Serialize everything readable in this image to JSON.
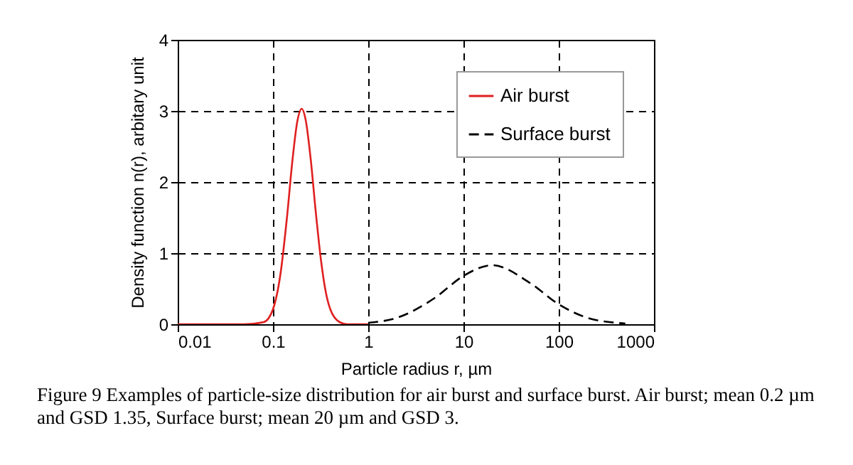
{
  "chart_data": {
    "type": "line",
    "xlabel": "Particle radius r, µm",
    "ylabel": "Density function n(r), arbitary unit",
    "log": "x",
    "xlim": [
      0.01,
      1000
    ],
    "xticks": [
      0.01,
      0.1,
      1,
      10,
      100,
      1000
    ],
    "ylim": [
      0,
      4
    ],
    "yticks": [
      0,
      1,
      2,
      3,
      4
    ],
    "grid": true,
    "legend": "top right",
    "series": [
      {
        "name": "Air burst",
        "color": "#e02020",
        "line_style": "solid",
        "x": [
          0.01,
          0.05,
          0.08,
          0.1,
          0.12,
          0.14,
          0.16,
          0.18,
          0.2,
          0.22,
          0.25,
          0.28,
          0.32,
          0.36,
          0.4,
          0.5,
          0.6,
          1
        ],
        "values": [
          0,
          0,
          0.03,
          0.21,
          0.71,
          1.49,
          2.3,
          2.85,
          3.03,
          2.88,
          2.3,
          1.61,
          0.89,
          0.44,
          0.21,
          0.03,
          0,
          0
        ]
      },
      {
        "name": "Surface burst",
        "color": "#000000",
        "line_style": "dashed",
        "x": [
          1,
          2,
          5,
          10,
          20,
          50,
          100,
          200,
          400,
          500
        ],
        "values": [
          0.02,
          0.09,
          0.37,
          0.68,
          0.83,
          0.58,
          0.28,
          0.09,
          0.02,
          0.01
        ]
      }
    ],
    "annotations": [
      "Figure 9  Examples of particle-size distribution for air burst and surface burst. Air burst; mean 0.2 µm and GSD 1.35, Surface burst; mean 20 µm and GSD 3."
    ]
  }
}
